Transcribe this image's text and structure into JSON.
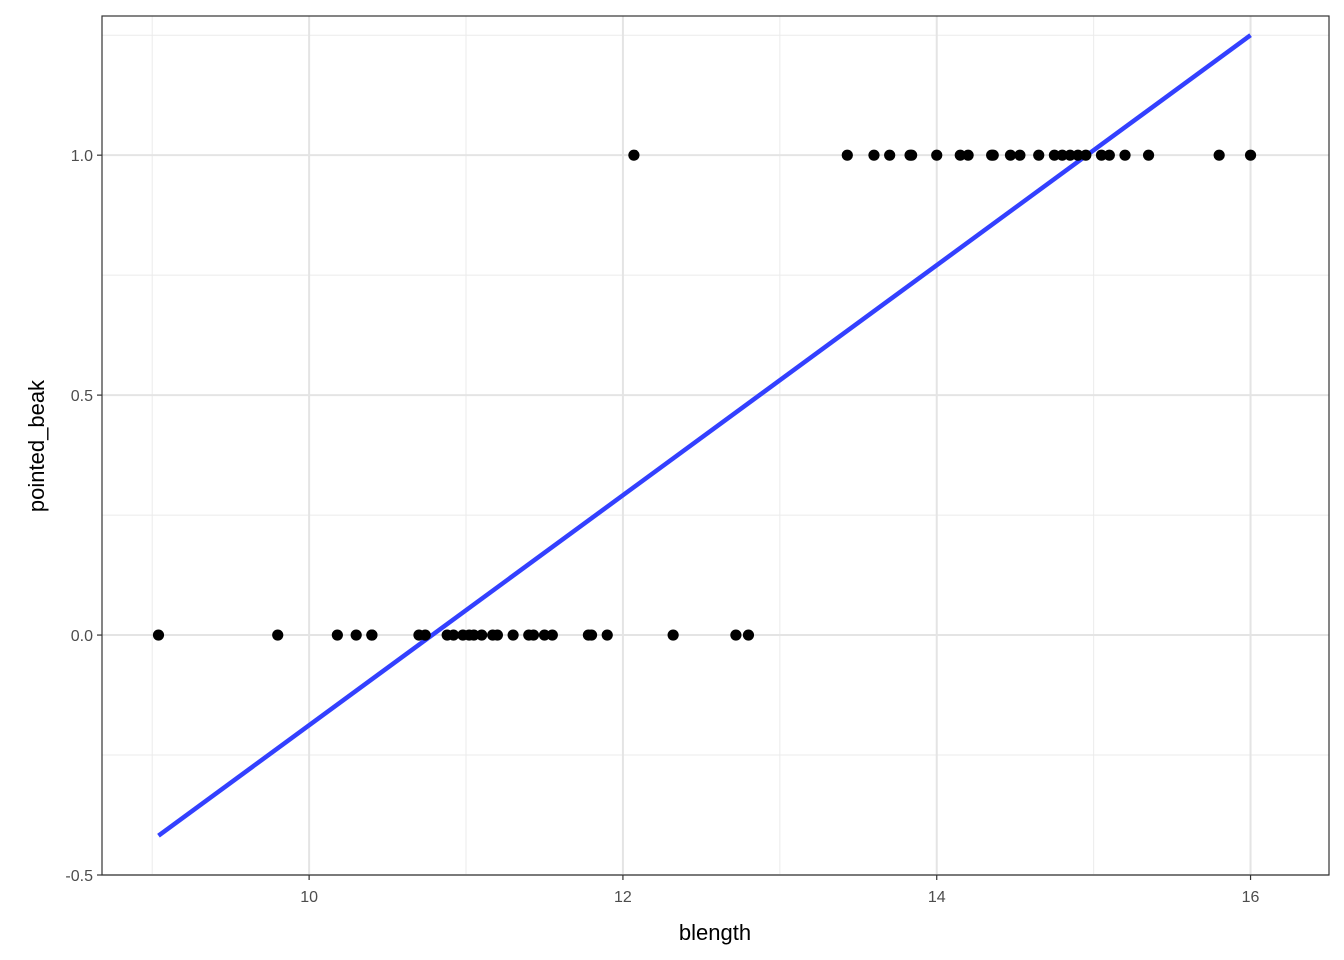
{
  "chart_data": {
    "type": "scatter",
    "title": "",
    "xlabel": "blength",
    "ylabel": "pointed_beak",
    "xlim": [
      8.68,
      16.5
    ],
    "ylim": [
      -0.5,
      1.29
    ],
    "x_ticks": [
      10,
      12,
      14,
      16
    ],
    "x_tick_labels": [
      "10",
      "12",
      "14",
      "16"
    ],
    "y_ticks": [
      -0.5,
      0.0,
      0.5,
      1.0
    ],
    "y_tick_labels": [
      "-0.5",
      "0.0",
      "0.5",
      "1.0"
    ],
    "grid": true,
    "theme": "black-and-white",
    "points": {
      "color": "#000000",
      "x": [
        9.04,
        9.8,
        10.18,
        10.3,
        10.4,
        10.4,
        10.7,
        10.74,
        10.88,
        10.92,
        10.98,
        11.02,
        11.05,
        11.1,
        11.17,
        11.2,
        11.3,
        11.4,
        11.43,
        11.5,
        11.55,
        11.78,
        11.8,
        11.9,
        12.32,
        12.72,
        12.8,
        12.07,
        13.43,
        13.6,
        13.7,
        13.83,
        13.84,
        14.0,
        14.15,
        14.2,
        14.35,
        14.36,
        14.47,
        14.53,
        14.65,
        14.75,
        14.8,
        14.85,
        14.9,
        14.95,
        15.05,
        15.1,
        15.2,
        15.35,
        15.8,
        16.0
      ],
      "y": [
        0,
        0,
        0,
        0,
        0,
        0,
        0,
        0,
        0,
        0,
        0,
        0,
        0,
        0,
        0,
        0,
        0,
        0,
        0,
        0,
        0,
        0,
        0,
        0,
        0,
        0,
        0,
        1,
        1,
        1,
        1,
        1,
        1,
        1,
        1,
        1,
        1,
        1,
        1,
        1,
        1,
        1,
        1,
        1,
        1,
        1,
        1,
        1,
        1,
        1,
        1,
        1
      ]
    },
    "fit_line": {
      "method": "lm",
      "color": "#3340FF",
      "x": [
        9.04,
        16.0
      ],
      "y": [
        -0.418,
        1.25
      ]
    }
  }
}
